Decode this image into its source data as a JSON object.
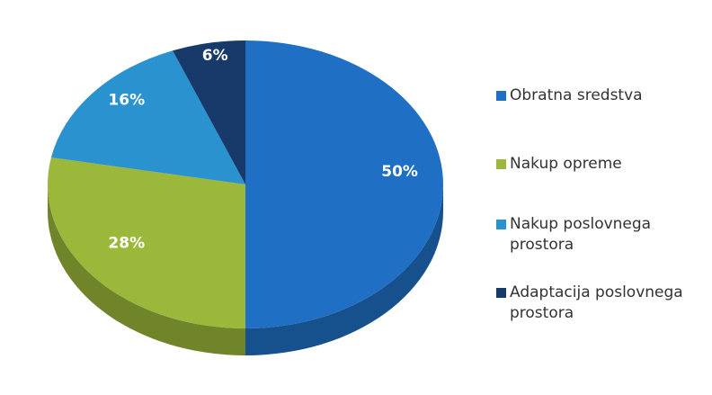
{
  "chart_data": {
    "type": "pie",
    "categories": [
      "Obratna sredstva",
      "Nakup opreme",
      "Nakup poslovnega prostora",
      "Adaptacija poslovnega prostora"
    ],
    "values": [
      50,
      28,
      16,
      6
    ],
    "value_labels": [
      "50%",
      "28%",
      "16%",
      "6%"
    ],
    "colors": [
      "#1f6fc4",
      "#9bb83a",
      "#2a92cf",
      "#173a6b"
    ],
    "legend": "right"
  }
}
